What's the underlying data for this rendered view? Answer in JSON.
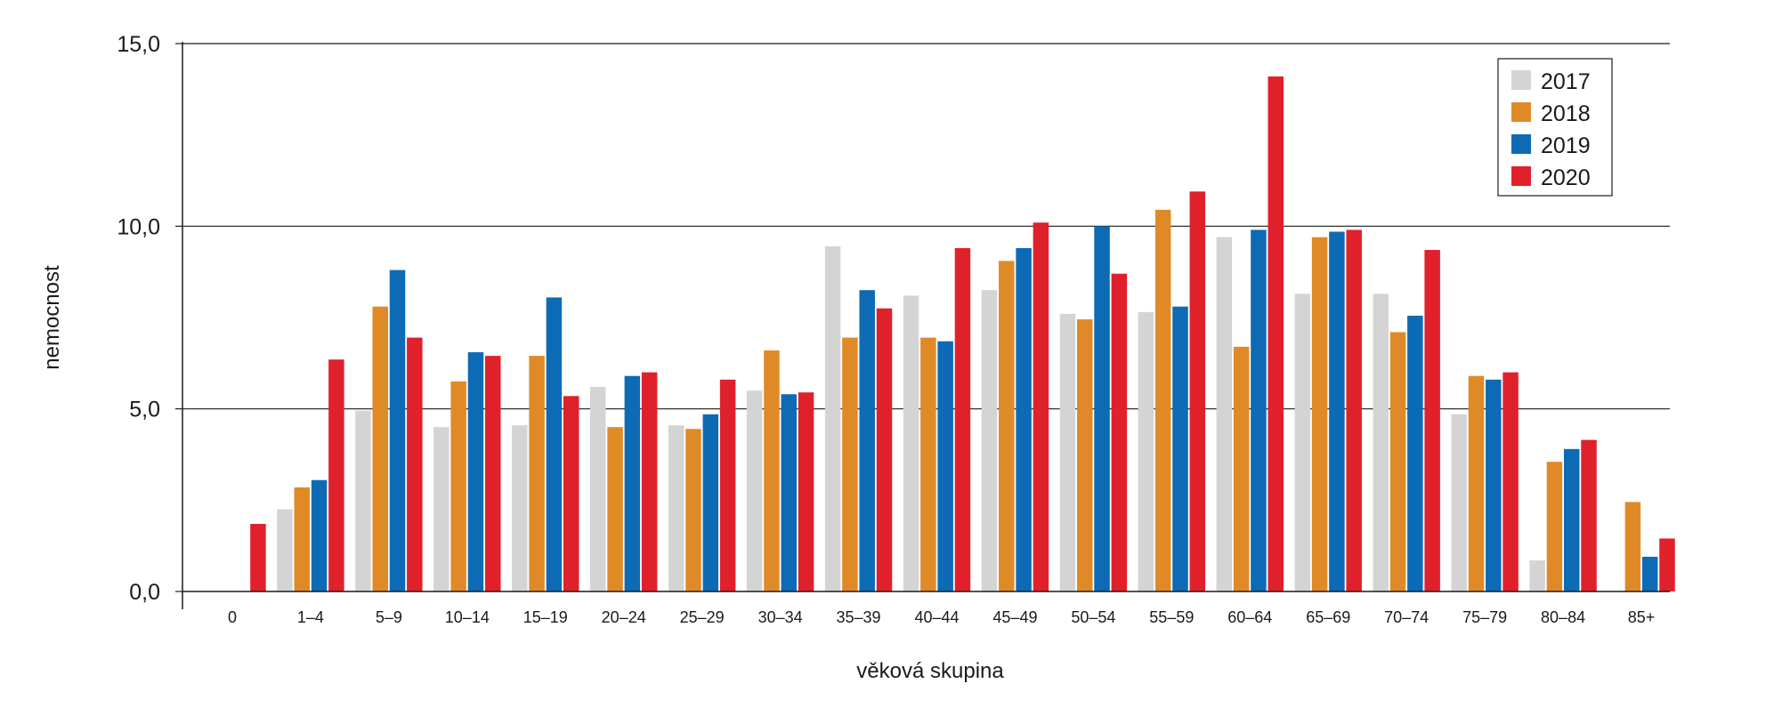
{
  "chart_data": {
    "type": "bar",
    "title": "",
    "xlabel": "věková skupina",
    "ylabel": "nemocnost",
    "ylim": [
      0,
      15
    ],
    "yticks": [
      0,
      5,
      10,
      15
    ],
    "ytick_labels": [
      "0,0",
      "5,0",
      "10,0",
      "15,0"
    ],
    "grid": true,
    "legend_position": "top-right",
    "categories": [
      "0",
      "1–4",
      "5–9",
      "10–14",
      "15–19",
      "20–24",
      "25–29",
      "30–34",
      "35–39",
      "40–44",
      "45–49",
      "50–54",
      "55–59",
      "60–64",
      "65–69",
      "70–74",
      "75–79",
      "80–84",
      "85+"
    ],
    "series": [
      {
        "name": "2017",
        "color": "#d4d4d4",
        "values": [
          0,
          2.25,
          4.95,
          4.5,
          4.55,
          5.6,
          4.55,
          5.5,
          9.45,
          8.1,
          8.25,
          7.6,
          7.65,
          9.7,
          8.15,
          8.15,
          4.85,
          0.85,
          0
        ]
      },
      {
        "name": "2018",
        "color": "#e08a27",
        "values": [
          0,
          2.85,
          7.8,
          5.75,
          6.45,
          4.5,
          4.45,
          6.6,
          6.95,
          6.95,
          9.05,
          7.45,
          10.45,
          6.7,
          9.7,
          7.1,
          5.9,
          3.55,
          2.45
        ]
      },
      {
        "name": "2019",
        "color": "#0d6bb5",
        "values": [
          0,
          3.05,
          8.8,
          6.55,
          8.05,
          5.9,
          4.85,
          5.4,
          8.25,
          6.85,
          9.4,
          10.0,
          7.8,
          9.9,
          9.85,
          7.55,
          5.8,
          3.9,
          0.95
        ]
      },
      {
        "name": "2020",
        "color": "#e0212b",
        "values": [
          1.85,
          6.35,
          6.95,
          6.45,
          5.35,
          6.0,
          5.8,
          5.45,
          7.75,
          9.4,
          10.1,
          8.7,
          10.95,
          14.1,
          9.9,
          9.35,
          6.0,
          4.15,
          1.45
        ]
      }
    ]
  }
}
